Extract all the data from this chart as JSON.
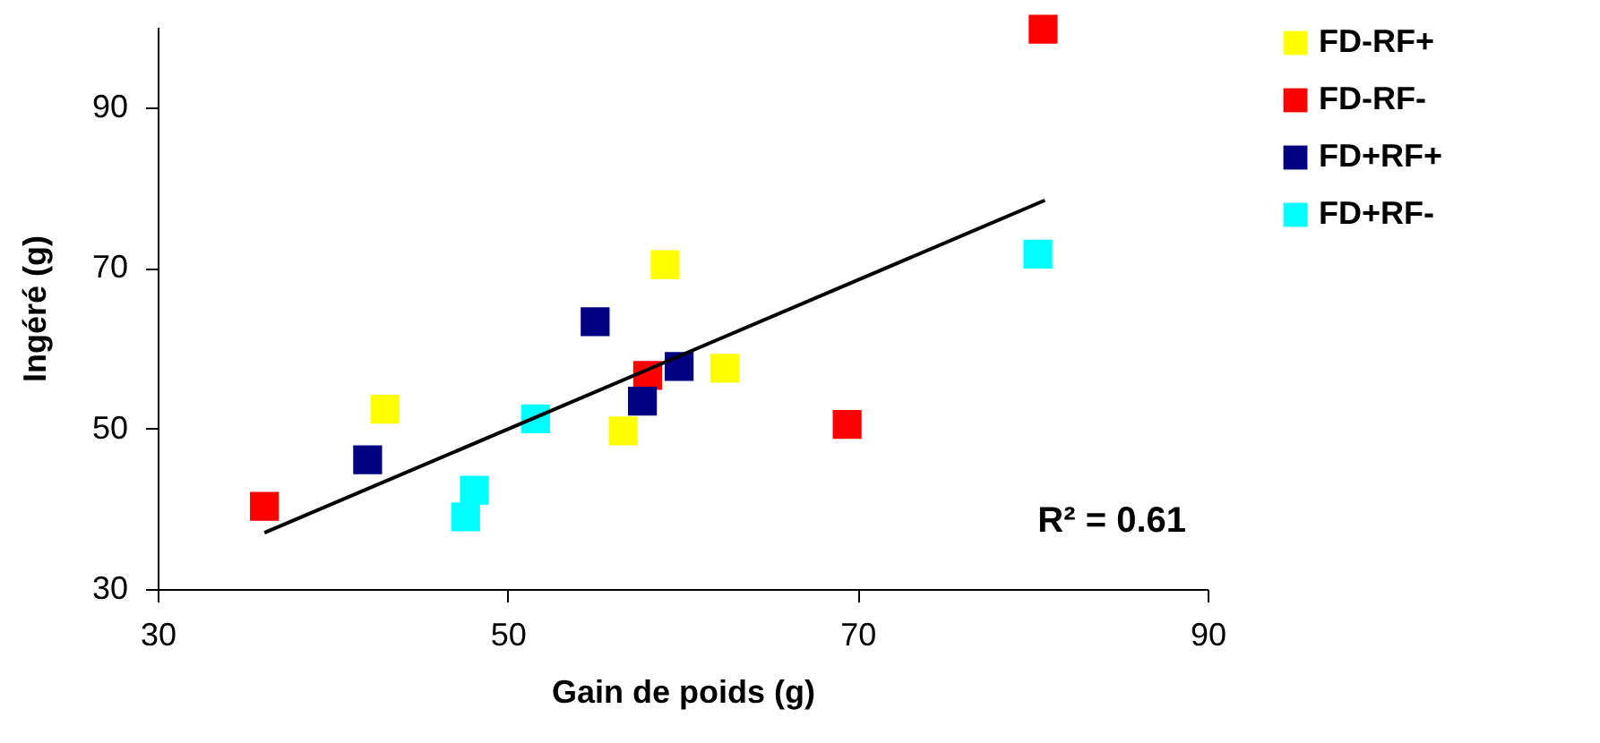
{
  "chart_data": {
    "type": "scatter",
    "xlabel": "Gain de poids (g)",
    "ylabel": "Ingéré (g)",
    "xlim": [
      30,
      90
    ],
    "xticks": [
      30,
      50,
      70,
      90
    ],
    "ylim": [
      30,
      100
    ],
    "yticks": [
      30,
      50,
      70,
      90
    ],
    "grid": false,
    "legend": "right",
    "marker": "square",
    "annotations": [
      "R² = 0.61"
    ],
    "series": [
      {
        "name": "FD-RF+",
        "color": "#ffff00",
        "x": [
          43.0,
          56.6,
          59.0,
          62.4
        ],
        "values": [
          52.4,
          49.7,
          70.4,
          57.5
        ]
      },
      {
        "name": "FD-RF-",
        "color": "#ff0000",
        "x": [
          36.1,
          58.0,
          69.4,
          80.6
        ],
        "values": [
          40.3,
          56.6,
          50.5,
          99.7
        ]
      },
      {
        "name": "FD+RF+",
        "color": "#000080",
        "x": [
          42.0,
          55.0,
          57.7,
          59.8
        ],
        "values": [
          46.1,
          63.3,
          53.4,
          57.7
        ]
      },
      {
        "name": "FD+RF-",
        "color": "#00ffff",
        "x": [
          47.6,
          48.1,
          51.6,
          80.3
        ],
        "values": [
          39.0,
          42.3,
          51.2,
          71.7
        ]
      },
      {
        "type": "line",
        "color": "#000000",
        "marker": "none",
        "line_style": "solid",
        "x": [
          36.1,
          80.7
        ],
        "values": [
          37.0,
          78.4
        ]
      }
    ]
  }
}
